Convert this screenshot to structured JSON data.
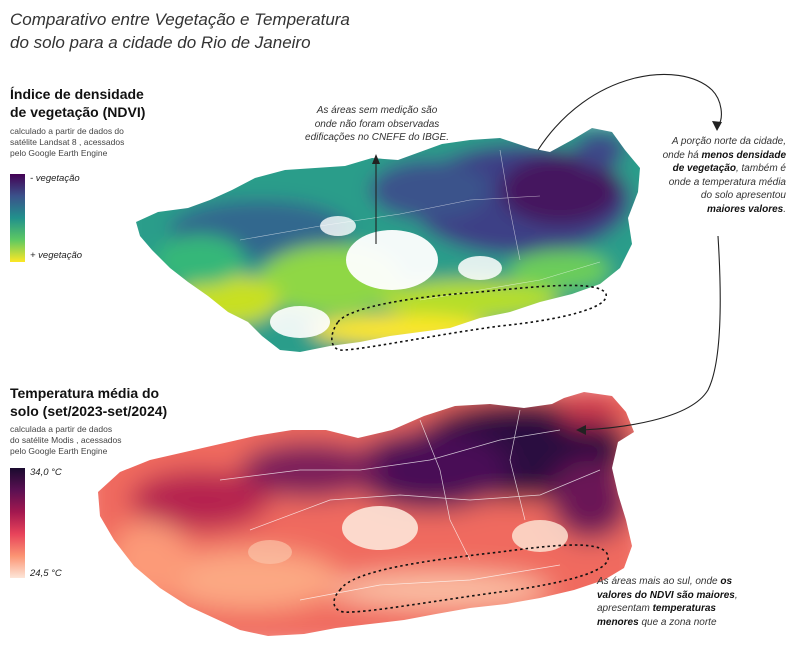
{
  "title": {
    "line1": "Comparativo entre Vegetação e Temperatura",
    "line2": "do solo para a cidade do Rio de Janeiro"
  },
  "ndvi": {
    "heading_line1": "Índice de densidade",
    "heading_line2": "de vegetação (NDVI)",
    "source_line1": "calculado a partir de dados do",
    "source_line2": "satélite Landsat 8 , acessados",
    "source_line3": "pelo Google Earth Engine",
    "legend_top": "- vegetação",
    "legend_bottom": "+ vegetação",
    "colors": [
      "#440154",
      "#3b528b",
      "#21918c",
      "#5ec962",
      "#fde725"
    ]
  },
  "temperature": {
    "heading_line1": "Temperatura média do",
    "heading_line2": "solo (set/2023-set/2024)",
    "source_line1": "calculada a partir de dados",
    "source_line2": "do satélite Modis , acessados",
    "source_line3": "pelo Google Earth Engine",
    "legend_top": "34,0 °C",
    "legend_bottom": "24,5 °C",
    "colors": [
      "#1a0a2e",
      "#5a1052",
      "#a3184f",
      "#e8435a",
      "#fb9473",
      "#fde6d8"
    ]
  },
  "notes": {
    "no_data": {
      "line1": "As áreas sem medição são",
      "line2": "onde não foram observadas",
      "line3": "edificações no CNEFE do IBGE."
    },
    "north": {
      "line1": "A porção norte da cidade,",
      "line2_pre": "onde há ",
      "line2_bold": "menos densidade",
      "line3_bold": "de vegetação",
      "line3_post": ", também é",
      "line4": "onde a temperatura média",
      "line5": "do solo apresentou",
      "line6_bold": "maiores valores",
      "line6_post": "."
    },
    "south": {
      "line1_pre": "As áreas mais ao sul, onde ",
      "line1_bold": "os",
      "line2_bold": "valores do NDVI são maiores",
      "line2_post": ",",
      "line3_pre": "apresentam ",
      "line3_bold": "temperaturas",
      "line4_bold": "menores",
      "line4_post": " que a zona norte"
    }
  }
}
